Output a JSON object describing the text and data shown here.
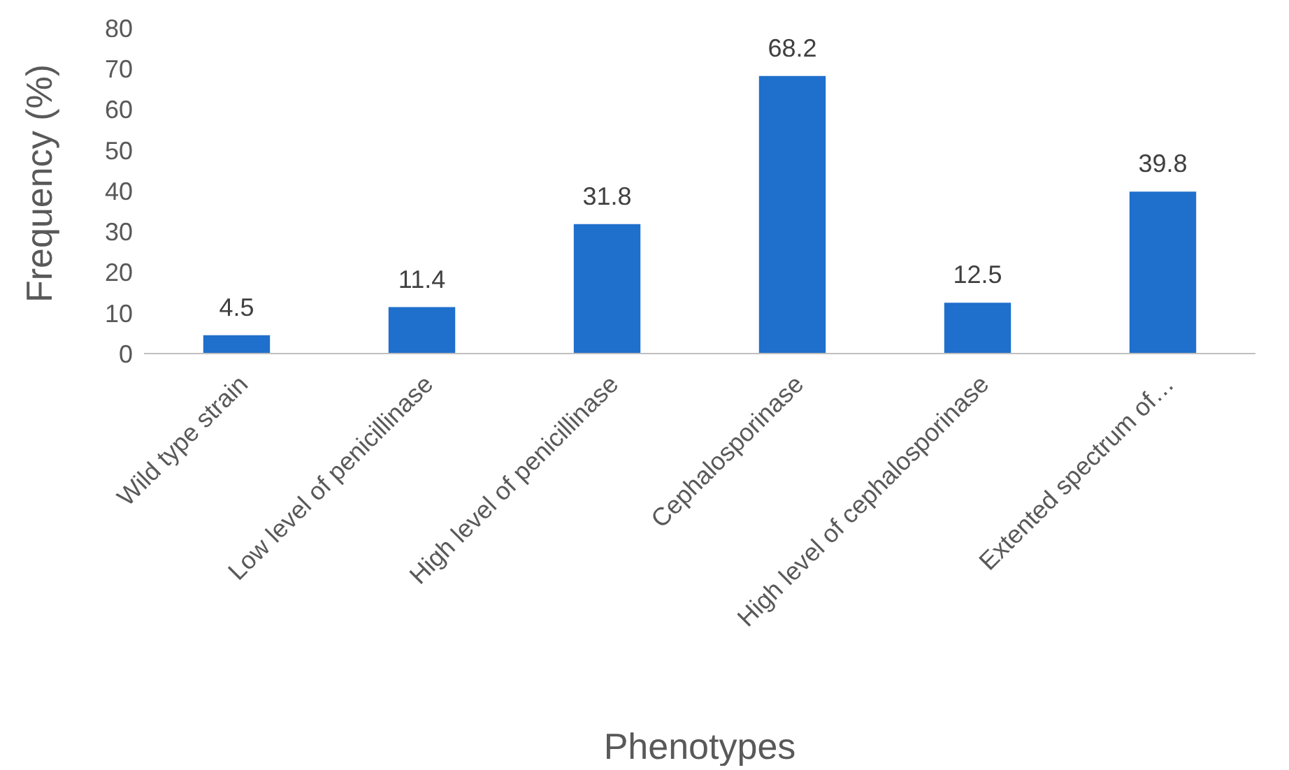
{
  "chart_data": {
    "type": "bar",
    "xlabel": "Phenotypes",
    "ylabel": "Frequency (%)",
    "categories": [
      "Wild type strain",
      "Low level of penicillinase",
      "High level of penicillinase",
      "Cephalosporinase",
      "High level of cephalosporinase",
      "Extented spectrum of…"
    ],
    "values": [
      4.5,
      11.4,
      31.8,
      68.2,
      12.5,
      39.8
    ],
    "color": "#1f6fcc",
    "ylim": [
      0,
      80
    ],
    "yticks": [
      0,
      10,
      20,
      30,
      40,
      50,
      60,
      70,
      80
    ],
    "grid": false,
    "data_labels": true
  }
}
